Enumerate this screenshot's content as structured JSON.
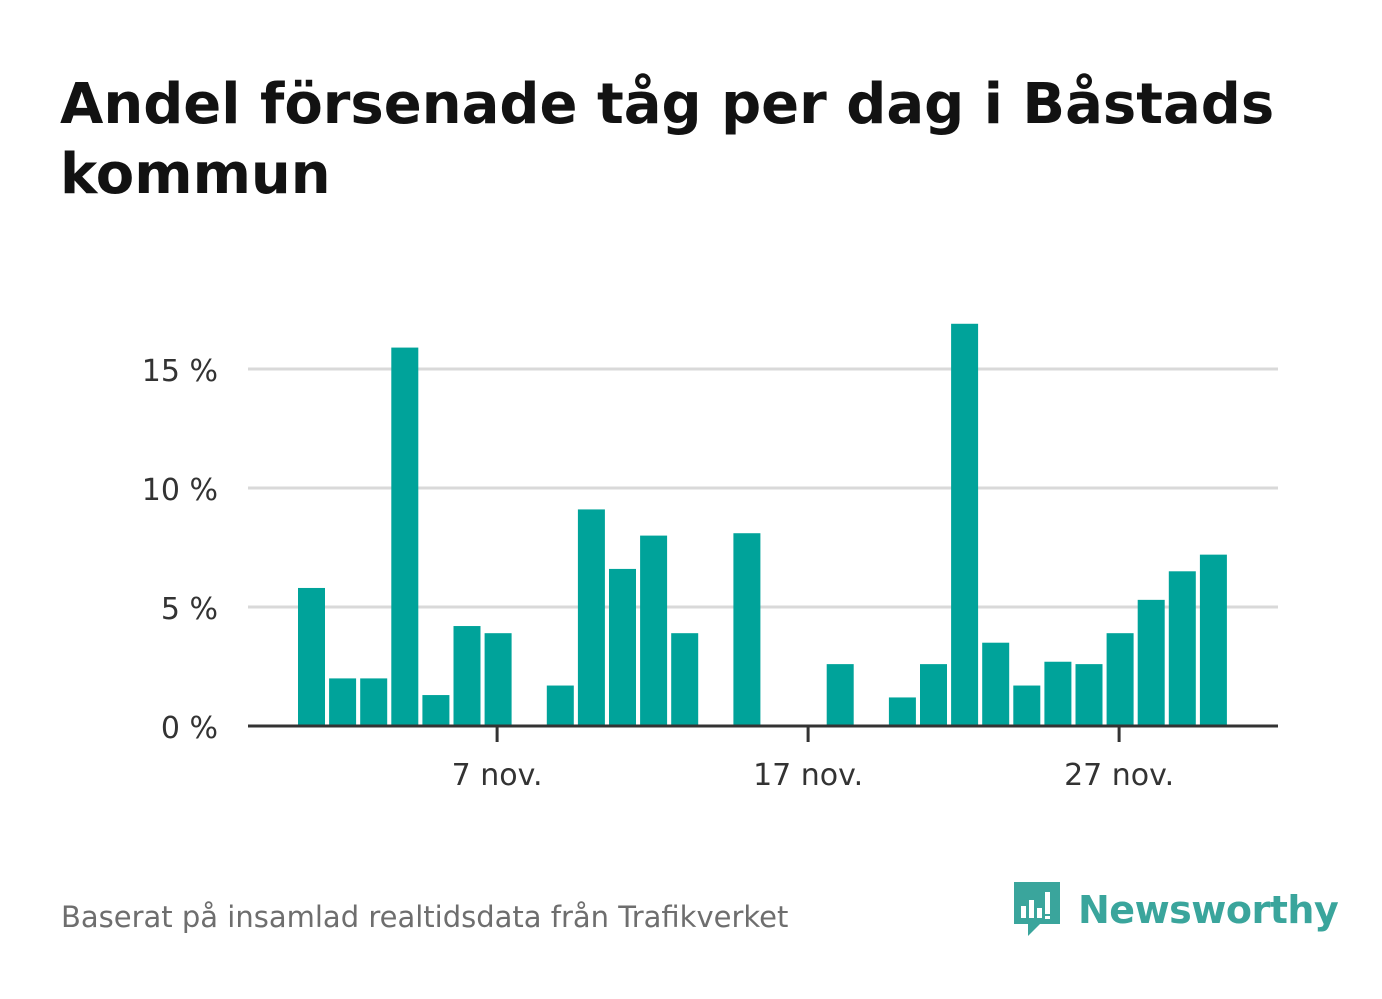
{
  "title": "Andel försenade tåg per dag i Båstads kommun",
  "source": "Baserat på insamlad realtidsdata från Trafikverket",
  "brand": {
    "name": "Newsworthy",
    "icon": "newsworthy-logo-icon",
    "color": "#3aa59c"
  },
  "colors": {
    "bar": "#00a39a",
    "grid": "#d9d9d9",
    "axis": "#333333",
    "text": "#333333"
  },
  "chart_data": {
    "type": "bar",
    "x_label_every_days": 10,
    "x": [
      "1 nov.",
      "2 nov.",
      "3 nov.",
      "4 nov.",
      "5 nov.",
      "6 nov.",
      "7 nov.",
      "8 nov.",
      "9 nov.",
      "10 nov.",
      "11 nov.",
      "12 nov.",
      "13 nov.",
      "14 nov.",
      "15 nov.",
      "16 nov.",
      "17 nov.",
      "18 nov.",
      "19 nov.",
      "20 nov.",
      "21 nov.",
      "22 nov.",
      "23 nov.",
      "24 nov.",
      "25 nov.",
      "26 nov.",
      "27 nov.",
      "28 nov.",
      "29 nov.",
      "30 nov."
    ],
    "values": [
      5.8,
      2.0,
      2.0,
      15.9,
      1.3,
      4.2,
      3.9,
      0,
      1.7,
      9.1,
      6.6,
      8.0,
      3.9,
      0,
      8.1,
      0,
      0,
      2.6,
      0,
      1.2,
      2.6,
      16.9,
      3.5,
      1.7,
      2.7,
      2.6,
      3.9,
      5.3,
      6.5,
      7.2
    ],
    "yticks": [
      0,
      5,
      10,
      15
    ],
    "ytick_labels": [
      "0 %",
      "5 %",
      "10 %",
      "15 %"
    ],
    "xtick_labels": [
      "7 nov.",
      "17 nov.",
      "27 nov."
    ],
    "xtick_positions": [
      "7 nov.",
      "17 nov.",
      "27 nov."
    ],
    "ylim": [
      0,
      18
    ],
    "grid": true,
    "xlabel": "",
    "ylabel": ""
  }
}
